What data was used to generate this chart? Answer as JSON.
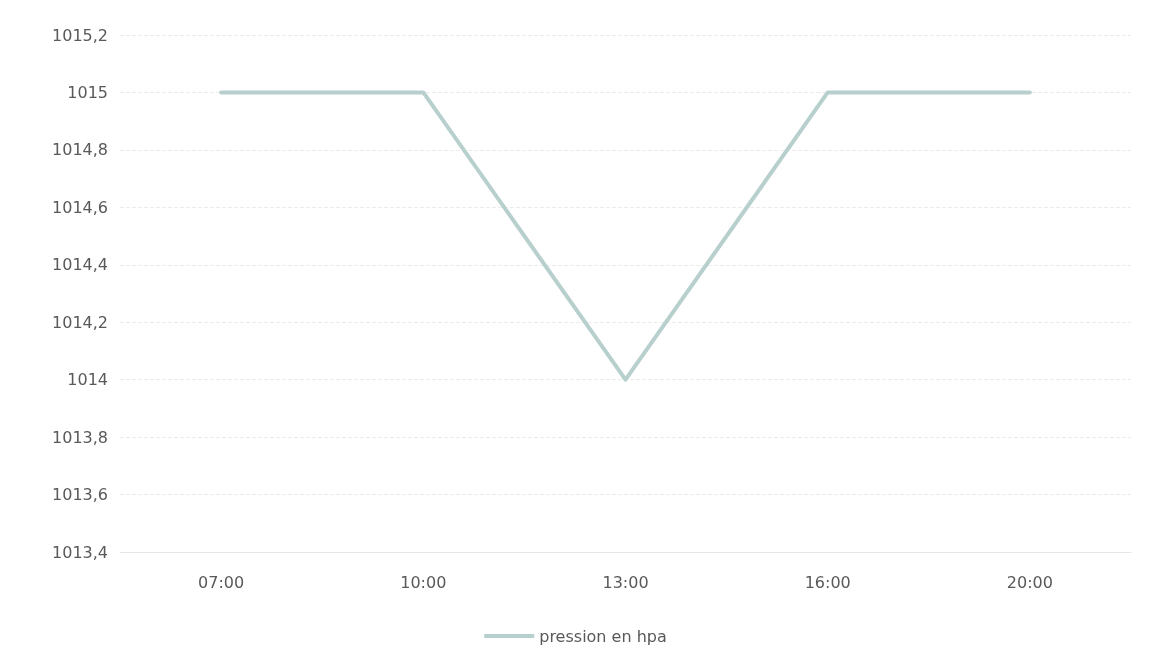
{
  "chart_data": {
    "type": "line",
    "categories": [
      "07:00",
      "10:00",
      "13:00",
      "16:00",
      "20:00"
    ],
    "series": [
      {
        "name": "pression en hpa",
        "color": "#b8d0cd",
        "values": [
          1015,
          1015,
          1014,
          1015,
          1015
        ]
      }
    ],
    "ylim": [
      1013.4,
      1015.2
    ],
    "yticks": [
      {
        "value": 1013.4,
        "label": "1013,4"
      },
      {
        "value": 1013.6,
        "label": "1013,6"
      },
      {
        "value": 1013.8,
        "label": "1013,8"
      },
      {
        "value": 1014,
        "label": "1014"
      },
      {
        "value": 1014.2,
        "label": "1014,2"
      },
      {
        "value": 1014.4,
        "label": "1014,4"
      },
      {
        "value": 1014.6,
        "label": "1014,6"
      },
      {
        "value": 1014.8,
        "label": "1014,8"
      },
      {
        "value": 1015,
        "label": "1015"
      },
      {
        "value": 1015.2,
        "label": "1015,2"
      }
    ],
    "grid": "y",
    "legend": "bottom",
    "marker": "none",
    "line_style": "solid"
  }
}
